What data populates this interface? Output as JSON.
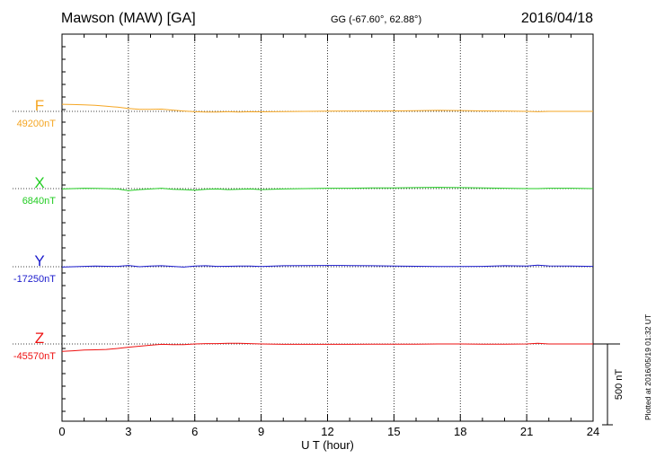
{
  "header": {
    "station": "Mawson (MAW)  [GA]",
    "coords": "GG (-67.60°,  62.88°)",
    "date": "2016/04/18"
  },
  "plotted_note": "Plotted at 2016/05/19 01:32 UT",
  "scale_label": "500 nT",
  "chart_data": {
    "type": "line",
    "xlabel": "U T (hour)",
    "xlim": [
      0,
      24
    ],
    "xticks": [
      0,
      3,
      6,
      9,
      12,
      15,
      18,
      21,
      24
    ],
    "grid": "dotted vertical at 3-hour intervals",
    "scale_nt": 500,
    "series": [
      {
        "name": "F",
        "baseline_label": "49200nT",
        "baseline": 49200,
        "color": "#f5a623",
        "x": [
          0,
          0.5,
          1,
          1.5,
          2,
          2.5,
          3,
          3.5,
          4,
          4.5,
          5,
          5.5,
          6,
          6.5,
          7,
          7.5,
          8,
          8.5,
          9,
          10,
          11,
          12,
          13,
          14,
          15,
          16,
          17,
          18,
          19,
          20,
          21,
          21.5,
          22,
          23,
          24
        ],
        "y": [
          49244,
          49242,
          49240,
          49238,
          49232,
          49226,
          49218,
          49212,
          49212,
          49214,
          49208,
          49202,
          49198,
          49196,
          49196,
          49198,
          49196,
          49198,
          49197,
          49199,
          49200,
          49201,
          49202,
          49203,
          49203,
          49204,
          49206,
          49205,
          49203,
          49202,
          49200,
          49198,
          49200,
          49200,
          49200
        ]
      },
      {
        "name": "X",
        "baseline_label": "6840nT",
        "baseline": 6840,
        "color": "#22cc22",
        "x": [
          0,
          0.5,
          1,
          1.5,
          2,
          2.5,
          3,
          3.5,
          4,
          4.5,
          5,
          5.5,
          6,
          6.5,
          7,
          7.5,
          8,
          8.5,
          9,
          10,
          11,
          12,
          13,
          14,
          15,
          16,
          17,
          18,
          19,
          20,
          21,
          21.5,
          22,
          23,
          24
        ],
        "y": [
          6838,
          6840,
          6842,
          6841,
          6840,
          6838,
          6828,
          6834,
          6838,
          6842,
          6836,
          6834,
          6830,
          6836,
          6838,
          6834,
          6836,
          6838,
          6834,
          6838,
          6840,
          6842,
          6842,
          6844,
          6844,
          6846,
          6848,
          6846,
          6844,
          6842,
          6840,
          6840,
          6842,
          6842,
          6840
        ]
      },
      {
        "name": "Y",
        "baseline_label": "-17250nT",
        "baseline": -17250,
        "color": "#1a1acc",
        "x": [
          0,
          0.5,
          1,
          1.5,
          2,
          2.5,
          3,
          3.5,
          4,
          4.5,
          5,
          5.5,
          6,
          6.5,
          7,
          7.5,
          8,
          8.5,
          9,
          10,
          11,
          12,
          13,
          14,
          15,
          16,
          17,
          18,
          19,
          20,
          21,
          21.5,
          22,
          23,
          24
        ],
        "y": [
          -17252,
          -17250,
          -17248,
          -17246,
          -17247,
          -17248,
          -17242,
          -17250,
          -17246,
          -17244,
          -17248,
          -17252,
          -17246,
          -17244,
          -17248,
          -17247,
          -17246,
          -17246,
          -17249,
          -17244,
          -17243,
          -17242,
          -17243,
          -17244,
          -17246,
          -17247,
          -17249,
          -17249,
          -17248,
          -17244,
          -17246,
          -17240,
          -17245,
          -17246,
          -17248
        ]
      },
      {
        "name": "Z",
        "baseline_label": "-45570nT",
        "baseline": -45570,
        "color": "#ee1111",
        "x": [
          0,
          0.5,
          1,
          1.5,
          2,
          2.5,
          3,
          3.5,
          4,
          4.5,
          5,
          5.5,
          6,
          6.5,
          7,
          7.5,
          8,
          8.5,
          9,
          10,
          11,
          12,
          13,
          14,
          15,
          16,
          17,
          18,
          19,
          20,
          21,
          21.5,
          22,
          23,
          24
        ],
        "y": [
          -45616,
          -45612,
          -45608,
          -45606,
          -45604,
          -45598,
          -45590,
          -45584,
          -45578,
          -45572,
          -45574,
          -45574,
          -45570,
          -45568,
          -45568,
          -45566,
          -45566,
          -45568,
          -45570,
          -45572,
          -45572,
          -45572,
          -45572,
          -45571,
          -45571,
          -45571,
          -45570,
          -45570,
          -45571,
          -45571,
          -45570,
          -45566,
          -45570,
          -45570,
          -45570
        ]
      }
    ]
  }
}
